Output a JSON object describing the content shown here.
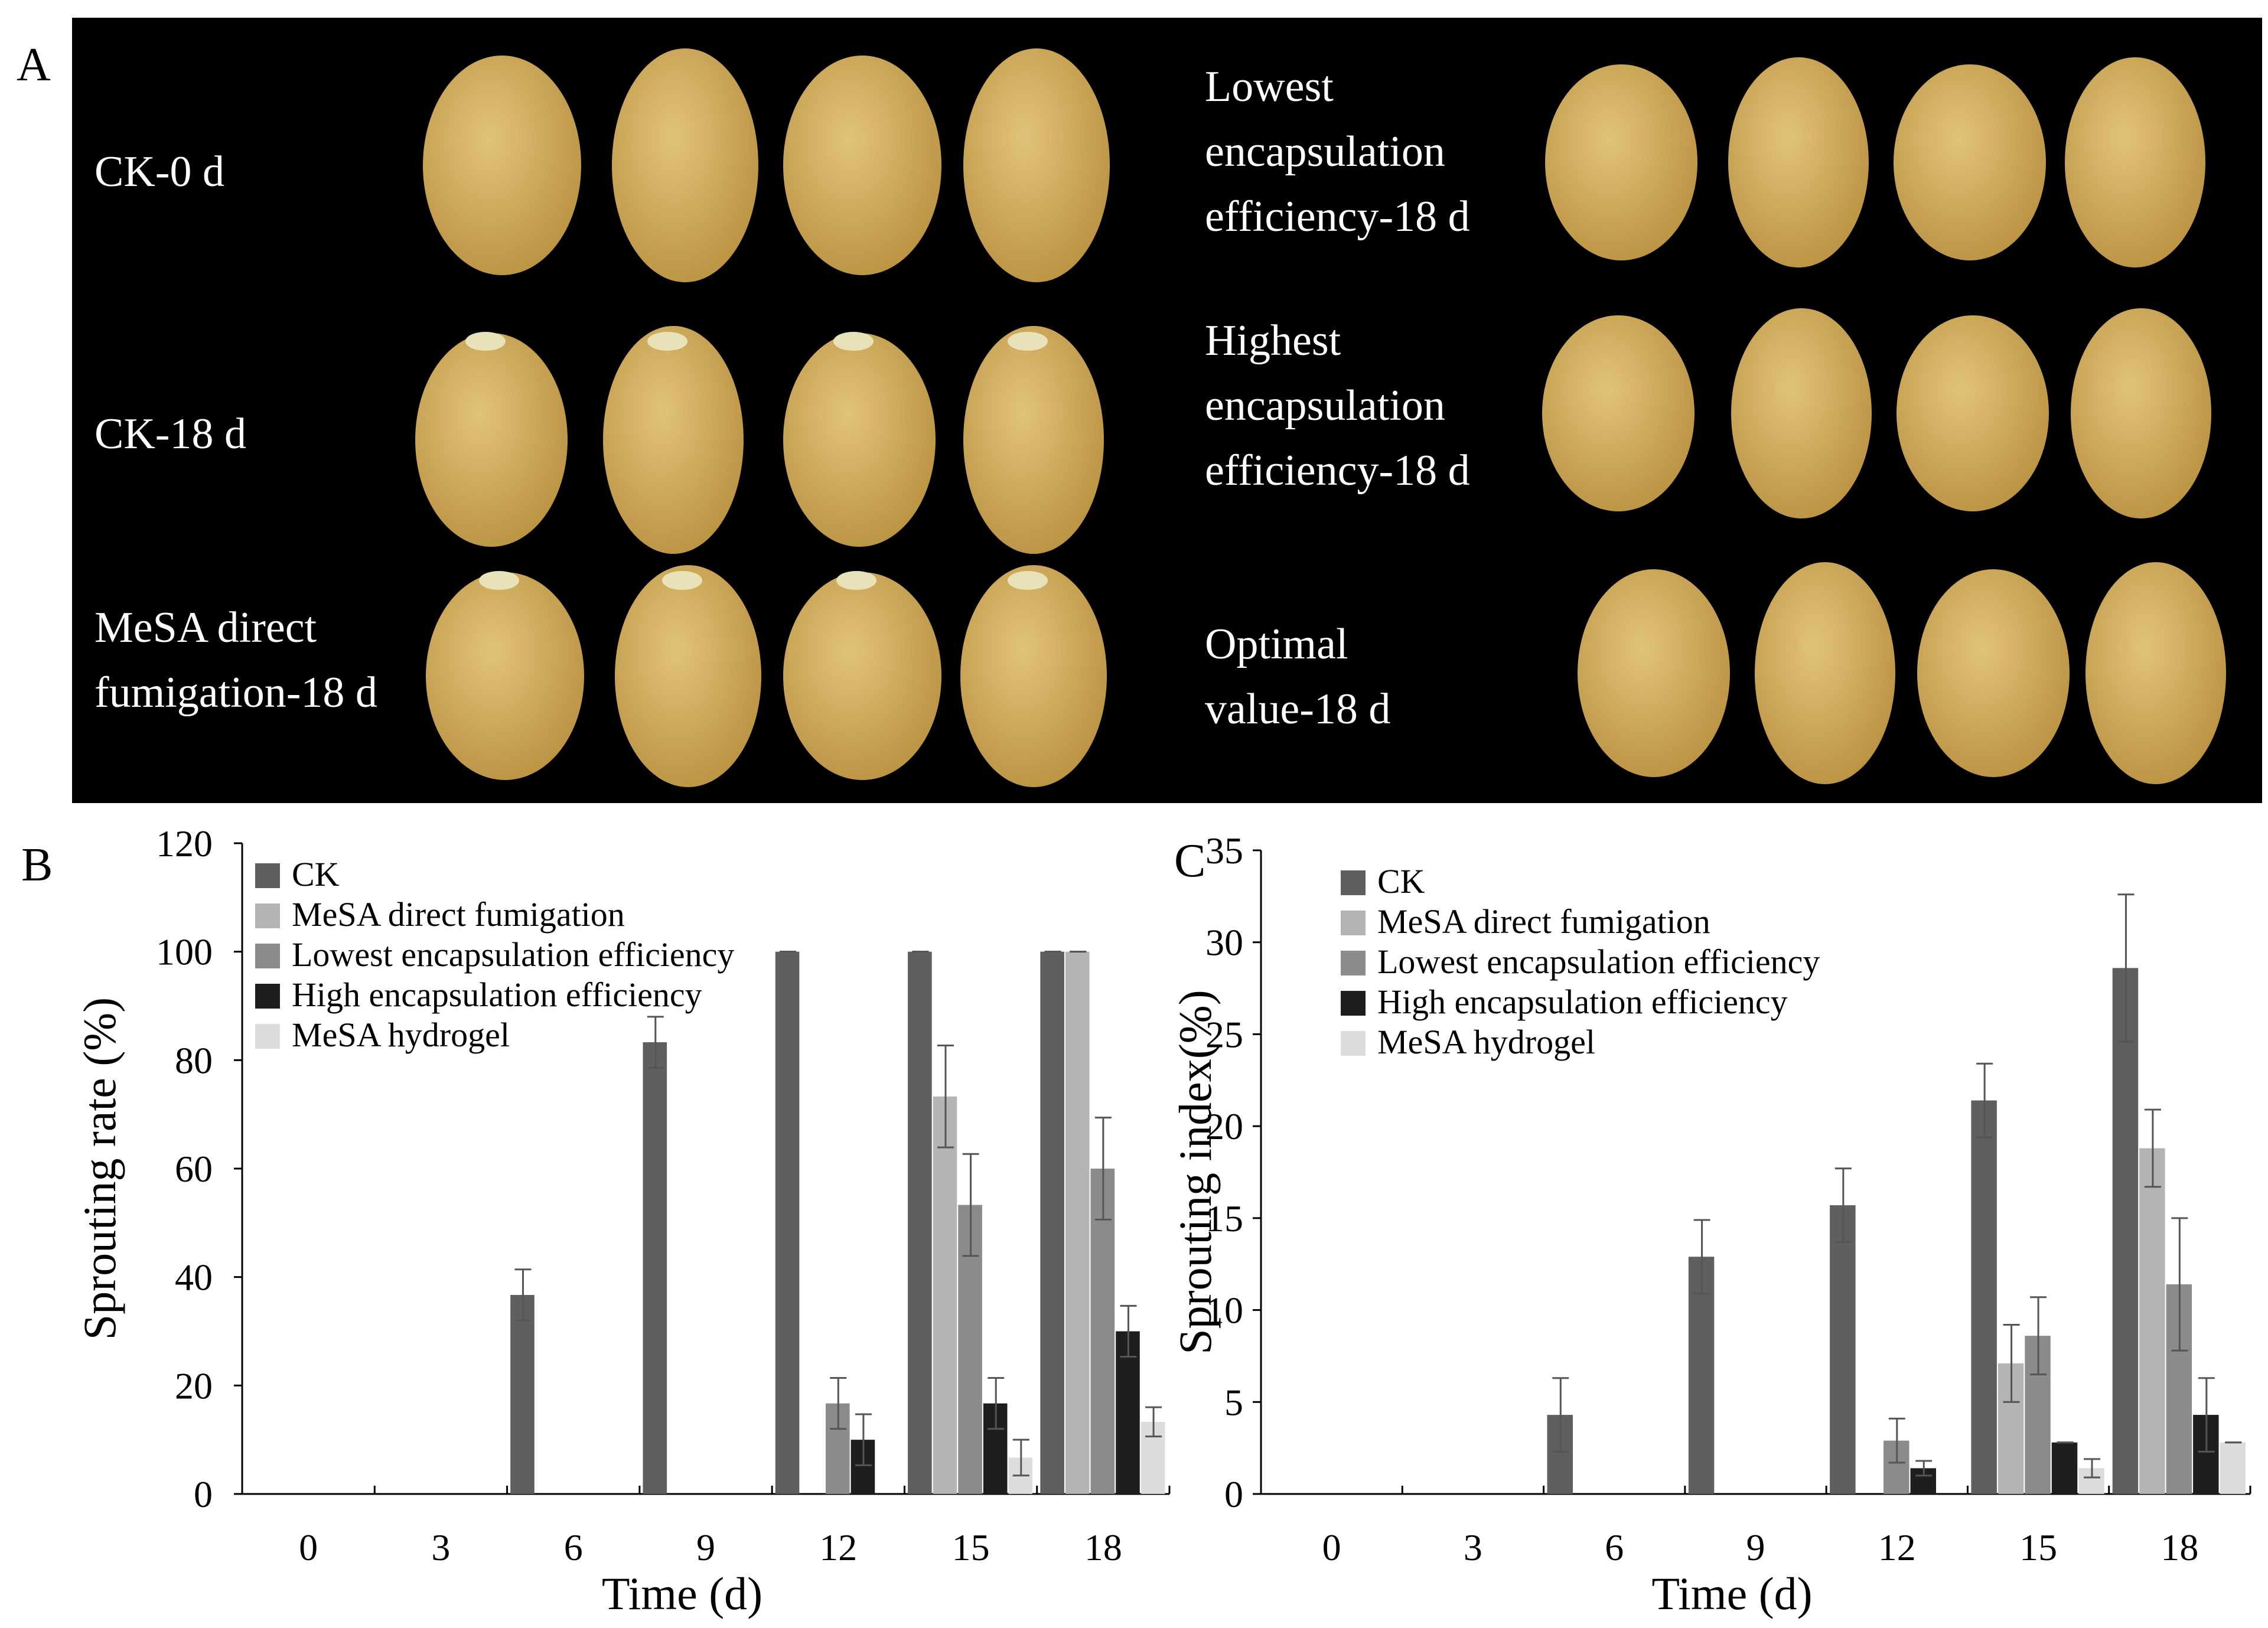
{
  "panels": {
    "a": {
      "letter": "A"
    },
    "b": {
      "letter": "B"
    },
    "c": {
      "letter": "C"
    }
  },
  "photo_labels": {
    "ck0": [
      "CK-0 d"
    ],
    "ck18": [
      "CK-18 d"
    ],
    "mesa_direct": [
      "MeSA direct",
      "fumigation-18 d"
    ],
    "lowest": [
      "Lowest",
      "encapsulation",
      "efficiency-18 d"
    ],
    "highest": [
      "Highest",
      "encapsulation",
      "efficiency-18 d"
    ],
    "optimal": [
      "Optimal",
      "value-18 d"
    ]
  },
  "photo_colors": {
    "background": "#000000",
    "potato_light": "#e2c27a",
    "potato_dark": "#b8903f",
    "sprout": "#e8e2b8"
  },
  "chart_data": [
    {
      "type": "bar",
      "panel": "B",
      "xlabel": "Time (d)",
      "ylabel": "Sprouting rate (%)",
      "ylim": [
        0,
        120
      ],
      "yticks": [
        0,
        20,
        40,
        60,
        80,
        100,
        120
      ],
      "categories": [
        "0",
        "3",
        "6",
        "9",
        "12",
        "15",
        "18"
      ],
      "legend_position": "top-left",
      "series": [
        {
          "name": "CK",
          "color": "#5f5f5f",
          "values": [
            0,
            0,
            36.7,
            83.3,
            100,
            100,
            100
          ],
          "errors": [
            0,
            0,
            4.7,
            4.7,
            0,
            0,
            0
          ]
        },
        {
          "name": "MeSA direct fumigation",
          "color": "#b4b4b4",
          "values": [
            0,
            0,
            0,
            0,
            0,
            73.3,
            100
          ],
          "errors": [
            0,
            0,
            0,
            0,
            0,
            9.4,
            0
          ]
        },
        {
          "name": "Lowest encapsulation efficiency",
          "color": "#8b8b8b",
          "values": [
            0,
            0,
            0,
            0,
            16.7,
            53.3,
            60
          ],
          "errors": [
            0,
            0,
            0,
            0,
            4.7,
            9.4,
            9.4
          ]
        },
        {
          "name": "High encapsulation efficiency",
          "color": "#1e1e1e",
          "values": [
            0,
            0,
            0,
            0,
            10,
            16.7,
            30
          ],
          "errors": [
            0,
            0,
            0,
            0,
            4.7,
            4.7,
            4.7
          ]
        },
        {
          "name": "MeSA hydrogel",
          "color": "#dcdcdc",
          "values": [
            0,
            0,
            0,
            0,
            0,
            6.7,
            13.3
          ],
          "errors": [
            0,
            0,
            0,
            0,
            0,
            3.3,
            2.7
          ]
        }
      ]
    },
    {
      "type": "bar",
      "panel": "C",
      "xlabel": "Time (d)",
      "ylabel": "Sprouting index(%)",
      "ylim": [
        0,
        35
      ],
      "yticks": [
        0,
        5,
        10,
        15,
        20,
        25,
        30,
        35
      ],
      "categories": [
        "0",
        "3",
        "6",
        "9",
        "12",
        "15",
        "18"
      ],
      "legend_position": "top-left",
      "series": [
        {
          "name": "CK",
          "color": "#5f5f5f",
          "values": [
            0,
            0,
            4.3,
            12.9,
            15.7,
            21.4,
            28.6
          ],
          "errors": [
            0,
            0,
            2.0,
            2.0,
            2.0,
            2.0,
            4.0
          ]
        },
        {
          "name": "MeSA direct fumigation",
          "color": "#b4b4b4",
          "values": [
            0,
            0,
            0,
            0,
            0,
            7.1,
            18.8
          ],
          "errors": [
            0,
            0,
            0,
            0,
            0,
            2.1,
            2.1
          ]
        },
        {
          "name": "Lowest encapsulation efficiency",
          "color": "#8b8b8b",
          "values": [
            0,
            0,
            0,
            0,
            2.9,
            8.6,
            11.4
          ],
          "errors": [
            0,
            0,
            0,
            0,
            1.2,
            2.1,
            3.6
          ]
        },
        {
          "name": "High encapsulation efficiency",
          "color": "#1e1e1e",
          "values": [
            0,
            0,
            0,
            0,
            1.4,
            2.8,
            4.3
          ],
          "errors": [
            0,
            0,
            0,
            0,
            0.4,
            0,
            2.0
          ]
        },
        {
          "name": "MeSA hydrogel",
          "color": "#dcdcdc",
          "values": [
            0,
            0,
            0,
            0,
            0,
            1.4,
            2.8
          ],
          "errors": [
            0,
            0,
            0,
            0,
            0,
            0.5,
            0
          ]
        }
      ]
    }
  ]
}
